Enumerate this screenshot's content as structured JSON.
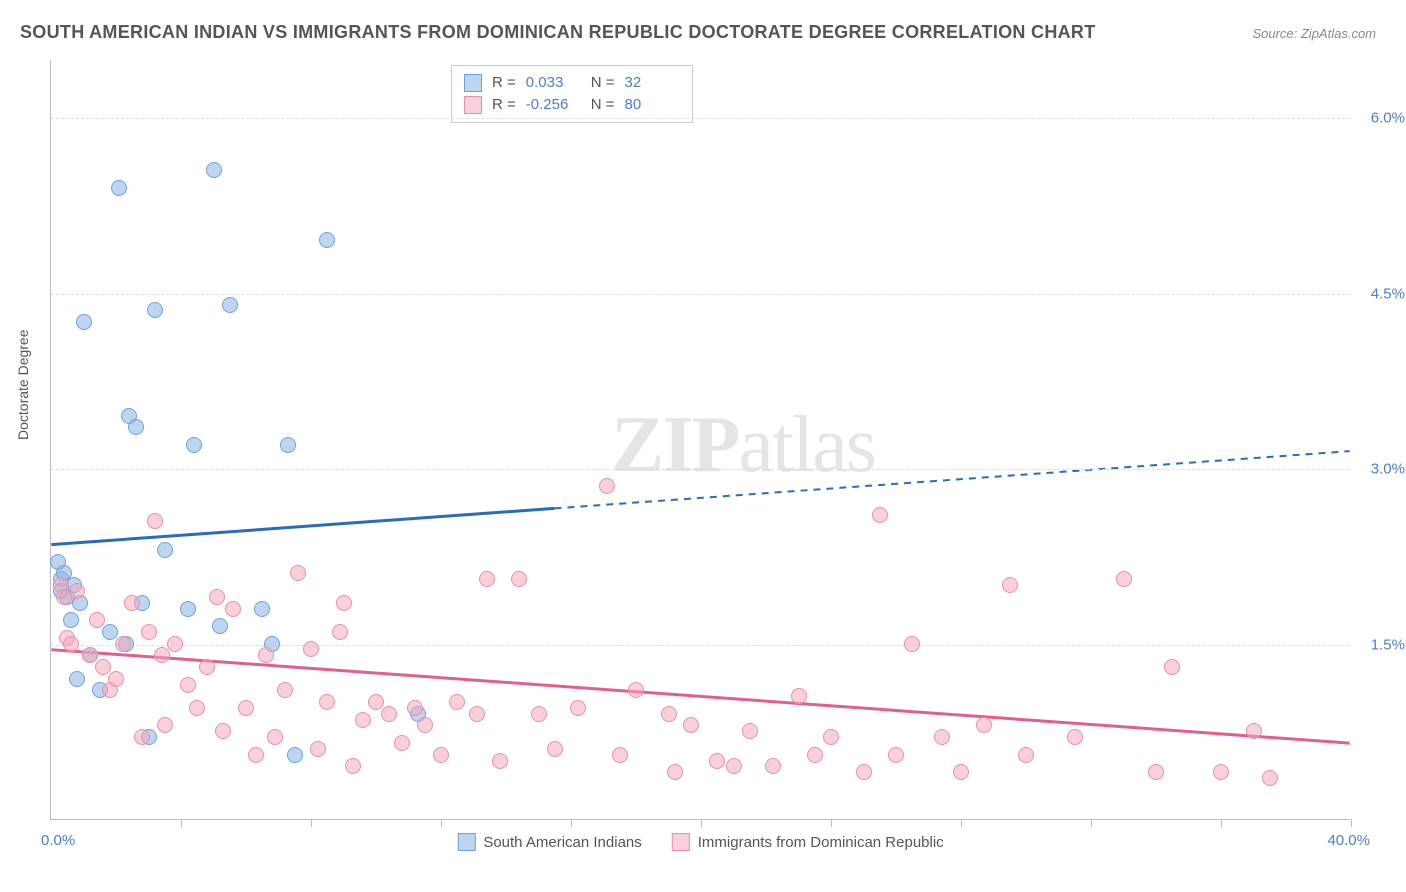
{
  "title": "SOUTH AMERICAN INDIAN VS IMMIGRANTS FROM DOMINICAN REPUBLIC DOCTORATE DEGREE CORRELATION CHART",
  "source": "Source: ZipAtlas.com",
  "watermark": {
    "zip": "ZIP",
    "atlas": "atlas"
  },
  "y_axis": {
    "title": "Doctorate Degree",
    "min": 0.0,
    "max": 6.5,
    "ticks": [
      {
        "val": 1.5,
        "label": "1.5%"
      },
      {
        "val": 3.0,
        "label": "3.0%"
      },
      {
        "val": 4.5,
        "label": "4.5%"
      },
      {
        "val": 6.0,
        "label": "6.0%"
      }
    ]
  },
  "x_axis": {
    "min": 0.0,
    "max": 40.0,
    "ticks": [
      4,
      8,
      12,
      16,
      20,
      24,
      28,
      32,
      36,
      40
    ],
    "left_label": "0.0%",
    "right_label": "40.0%"
  },
  "series": [
    {
      "key": "sai",
      "name": "South American Indians",
      "fill": "rgba(136,178,227,0.55)",
      "stroke": "#6ba3dd",
      "line_color": "#2b6cb8",
      "r_value": "0.033",
      "n_value": "32",
      "trend": {
        "y_at_xmin": 2.35,
        "y_at_xmax": 3.15,
        "solid_until_x": 15.5
      },
      "points": [
        [
          0.2,
          2.2
        ],
        [
          0.3,
          2.05
        ],
        [
          0.3,
          1.95
        ],
        [
          0.4,
          2.1
        ],
        [
          0.5,
          1.9
        ],
        [
          0.6,
          1.7
        ],
        [
          0.7,
          2.0
        ],
        [
          0.8,
          1.2
        ],
        [
          0.9,
          1.85
        ],
        [
          1.0,
          4.25
        ],
        [
          1.2,
          1.4
        ],
        [
          1.5,
          1.1
        ],
        [
          1.8,
          1.6
        ],
        [
          2.1,
          5.4
        ],
        [
          2.3,
          1.5
        ],
        [
          2.4,
          3.45
        ],
        [
          2.6,
          3.35
        ],
        [
          2.8,
          1.85
        ],
        [
          3.0,
          0.7
        ],
        [
          3.2,
          4.35
        ],
        [
          3.5,
          2.3
        ],
        [
          4.2,
          1.8
        ],
        [
          4.4,
          3.2
        ],
        [
          5.0,
          5.55
        ],
        [
          5.2,
          1.65
        ],
        [
          5.5,
          4.4
        ],
        [
          6.5,
          1.8
        ],
        [
          6.8,
          1.5
        ],
        [
          7.3,
          3.2
        ],
        [
          7.5,
          0.55
        ],
        [
          8.5,
          4.95
        ],
        [
          11.3,
          0.9
        ]
      ]
    },
    {
      "key": "dr",
      "name": "Immigrants from Dominican Republic",
      "fill": "rgba(244,168,188,0.55)",
      "stroke": "#e890aa",
      "line_color": "#e06088",
      "r_value": "-0.256",
      "n_value": "80",
      "trend": {
        "y_at_xmin": 1.45,
        "y_at_xmax": 0.65,
        "solid_until_x": 40
      },
      "points": [
        [
          0.3,
          2.0
        ],
        [
          0.4,
          1.9
        ],
        [
          0.5,
          1.55
        ],
        [
          0.6,
          1.5
        ],
        [
          0.8,
          1.95
        ],
        [
          1.2,
          1.4
        ],
        [
          1.4,
          1.7
        ],
        [
          1.6,
          1.3
        ],
        [
          1.8,
          1.1
        ],
        [
          2.0,
          1.2
        ],
        [
          2.2,
          1.5
        ],
        [
          2.5,
          1.85
        ],
        [
          2.8,
          0.7
        ],
        [
          3.0,
          1.6
        ],
        [
          3.2,
          2.55
        ],
        [
          3.4,
          1.4
        ],
        [
          3.5,
          0.8
        ],
        [
          3.8,
          1.5
        ],
        [
          4.2,
          1.15
        ],
        [
          4.5,
          0.95
        ],
        [
          4.8,
          1.3
        ],
        [
          5.1,
          1.9
        ],
        [
          5.3,
          0.75
        ],
        [
          5.6,
          1.8
        ],
        [
          6.0,
          0.95
        ],
        [
          6.3,
          0.55
        ],
        [
          6.6,
          1.4
        ],
        [
          6.9,
          0.7
        ],
        [
          7.2,
          1.1
        ],
        [
          7.6,
          2.1
        ],
        [
          8.0,
          1.45
        ],
        [
          8.2,
          0.6
        ],
        [
          8.5,
          1.0
        ],
        [
          8.9,
          1.6
        ],
        [
          9.0,
          1.85
        ],
        [
          9.3,
          0.45
        ],
        [
          9.6,
          0.85
        ],
        [
          10.0,
          1.0
        ],
        [
          10.4,
          0.9
        ],
        [
          10.8,
          0.65
        ],
        [
          11.2,
          0.95
        ],
        [
          11.5,
          0.8
        ],
        [
          12.0,
          0.55
        ],
        [
          12.5,
          1.0
        ],
        [
          13.1,
          0.9
        ],
        [
          13.4,
          2.05
        ],
        [
          13.8,
          0.5
        ],
        [
          14.4,
          2.05
        ],
        [
          15.0,
          0.9
        ],
        [
          15.5,
          0.6
        ],
        [
          16.2,
          0.95
        ],
        [
          17.1,
          2.85
        ],
        [
          17.5,
          0.55
        ],
        [
          18.0,
          1.1
        ],
        [
          19.0,
          0.9
        ],
        [
          19.2,
          0.4
        ],
        [
          19.7,
          0.8
        ],
        [
          20.5,
          0.5
        ],
        [
          21.0,
          0.45
        ],
        [
          21.5,
          0.75
        ],
        [
          22.2,
          0.45
        ],
        [
          23.0,
          1.05
        ],
        [
          23.5,
          0.55
        ],
        [
          24.0,
          0.7
        ],
        [
          25.0,
          0.4
        ],
        [
          25.5,
          2.6
        ],
        [
          26.0,
          0.55
        ],
        [
          26.5,
          1.5
        ],
        [
          27.4,
          0.7
        ],
        [
          28.0,
          0.4
        ],
        [
          28.7,
          0.8
        ],
        [
          29.5,
          2.0
        ],
        [
          30.0,
          0.55
        ],
        [
          31.5,
          0.7
        ],
        [
          33.0,
          2.05
        ],
        [
          34.0,
          0.4
        ],
        [
          34.5,
          1.3
        ],
        [
          36.0,
          0.4
        ],
        [
          37.0,
          0.75
        ],
        [
          37.5,
          0.35
        ]
      ]
    }
  ],
  "legend_box": {
    "r_label": "R =",
    "n_label": "N ="
  }
}
